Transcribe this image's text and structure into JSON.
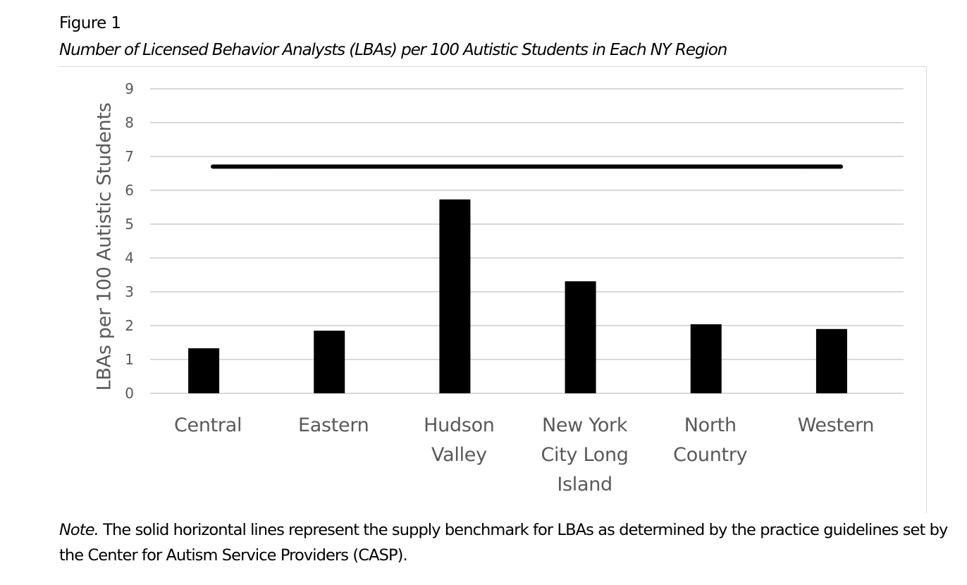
{
  "figure": {
    "label": "Figure 1",
    "title": "Number of Licensed Behavior Analysts (LBAs) per 100 Autistic Students in Each NY Region",
    "note_lead": "Note.",
    "note_text": " The solid horizontal lines represent the supply benchmark for LBAs as determined by the practice guidelines set by the Center for Autism Service Providers (CASP)."
  },
  "colors": {
    "bar": "#000000",
    "benchmark": "#000000",
    "gridline": "#d9d9d9",
    "axis_text": "#595959",
    "frame": "#d9d9d9"
  },
  "chart_data": {
    "type": "bar",
    "title": "Number of Licensed Behavior Analysts (LBAs) per 100 Autistic Students in Each NY Region",
    "xlabel": "",
    "ylabel": "LBAs per 100 Autistic Students",
    "categories": [
      "Central",
      "Eastern",
      "Hudson Valley",
      "New York City Long Island",
      "North Country",
      "Western"
    ],
    "category_lines": [
      [
        "Central"
      ],
      [
        "Eastern"
      ],
      [
        "Hudson",
        "Valley"
      ],
      [
        "New York",
        "City Long",
        "Island"
      ],
      [
        "North",
        "Country"
      ],
      [
        "Western"
      ]
    ],
    "series": [
      {
        "name": "LBAs per 100 Autistic Students",
        "values": [
          1.33,
          1.85,
          5.73,
          3.31,
          2.04,
          1.9
        ]
      }
    ],
    "benchmark": {
      "name": "CASP supply benchmark",
      "value": 6.7,
      "style": "solid horizontal line"
    },
    "ylim": [
      0,
      9
    ],
    "yticks": [
      0,
      1,
      2,
      3,
      4,
      5,
      6,
      7,
      8,
      9
    ],
    "grid": true,
    "legend": "none"
  }
}
